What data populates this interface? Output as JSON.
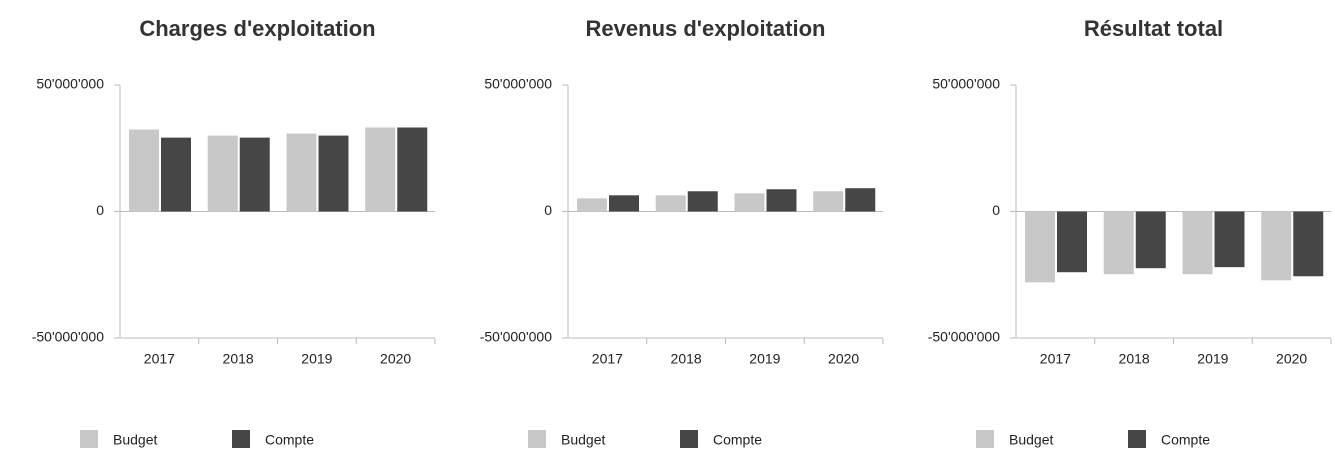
{
  "chart_data": [
    {
      "type": "bar",
      "title": "Charges d'exploitation",
      "categories": [
        "2017",
        "2018",
        "2019",
        "2020"
      ],
      "series": [
        {
          "name": "Budget",
          "color": "#c8c8c8",
          "values": [
            32400000,
            30000000,
            30800000,
            33200000
          ]
        },
        {
          "name": "Compte",
          "color": "#464646",
          "values": [
            29200000,
            29200000,
            30000000,
            33200000
          ]
        }
      ],
      "ylim": [
        -50000000,
        50000000
      ],
      "yticks": [
        {
          "value": -50000000,
          "label": "-50'000'000"
        },
        0,
        {
          "value": 50000000,
          "label": "50'000'000"
        }
      ]
    },
    {
      "type": "bar",
      "title": "Revenus d'exploitation",
      "categories": [
        "2017",
        "2018",
        "2019",
        "2020"
      ],
      "series": [
        {
          "name": "Budget",
          "color": "#c8c8c8",
          "values": [
            5200000,
            6400000,
            7200000,
            8000000
          ]
        },
        {
          "name": "Compte",
          "color": "#464646",
          "values": [
            6400000,
            8000000,
            8800000,
            9200000
          ]
        }
      ],
      "ylim": [
        -50000000,
        50000000
      ],
      "yticks": [
        {
          "value": -50000000,
          "label": "-50'000'000"
        },
        0,
        {
          "value": 50000000,
          "label": "50'000'000"
        }
      ]
    },
    {
      "type": "bar",
      "title": "Résultat total",
      "categories": [
        "2017",
        "2018",
        "2019",
        "2020"
      ],
      "series": [
        {
          "name": "Budget",
          "color": "#c8c8c8",
          "values": [
            -28000000,
            -24800000,
            -24800000,
            -27200000
          ]
        },
        {
          "name": "Compte",
          "color": "#464646",
          "values": [
            -24000000,
            -22400000,
            -22000000,
            -25600000
          ]
        }
      ],
      "ylim": [
        -50000000,
        50000000
      ],
      "yticks": [
        {
          "value": -50000000,
          "label": "-50'000'000"
        },
        0,
        {
          "value": 50000000,
          "label": "50'000'000"
        }
      ]
    }
  ]
}
